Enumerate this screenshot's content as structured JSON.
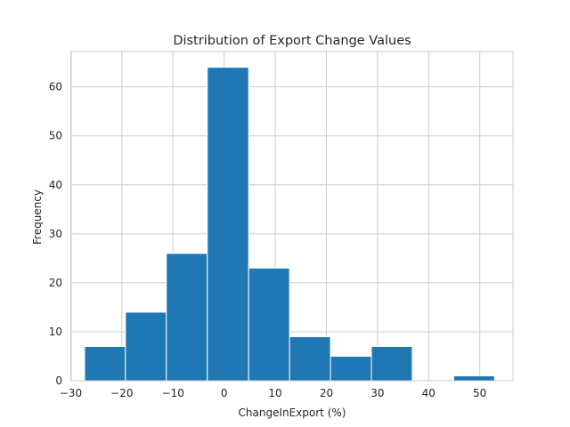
{
  "chart_data": {
    "type": "bar",
    "title": "Distribution of Export Change Values",
    "xlabel": "ChangeInExport (%)",
    "ylabel": "Frequency",
    "xlim": [
      -29.9,
      56.5
    ],
    "ylim": [
      0,
      67.2
    ],
    "xticks": [
      -30,
      -20,
      -10,
      0,
      10,
      20,
      30,
      40,
      50
    ],
    "yticks": [
      0,
      10,
      20,
      30,
      40,
      50,
      60
    ],
    "grid": true,
    "color": "#1f77b4",
    "bins": [
      {
        "x0": -27.3,
        "x1": -19.3,
        "value": 7
      },
      {
        "x0": -19.3,
        "x1": -11.3,
        "value": 14
      },
      {
        "x0": -11.3,
        "x1": -3.3,
        "value": 26
      },
      {
        "x0": -3.3,
        "x1": 4.8,
        "value": 64
      },
      {
        "x0": 4.8,
        "x1": 12.8,
        "value": 23
      },
      {
        "x0": 12.8,
        "x1": 20.8,
        "value": 9
      },
      {
        "x0": 20.8,
        "x1": 28.8,
        "value": 5
      },
      {
        "x0": 28.8,
        "x1": 36.8,
        "value": 7
      },
      {
        "x0": 36.8,
        "x1": 44.9,
        "value": 0
      },
      {
        "x0": 44.9,
        "x1": 52.9,
        "value": 1
      }
    ]
  }
}
